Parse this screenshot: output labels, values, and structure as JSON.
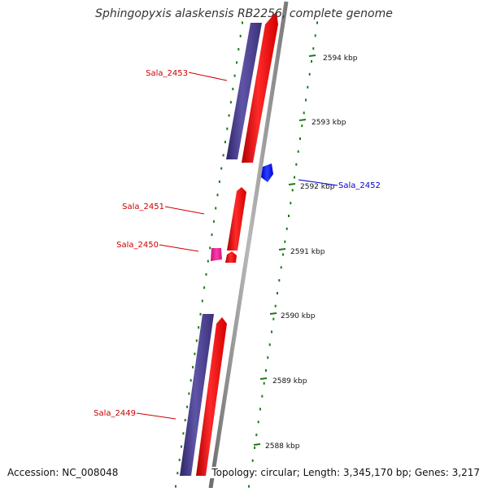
{
  "title": "Sphingopyxis alaskensis RB2256, complete genome",
  "footer": {
    "accession": "Accession: NC_008048",
    "summary": "Topology: circular; Length: 3,345,170 bp; Genes: 3,217"
  },
  "colors": {
    "forward_cds": "#ff0000",
    "reverse_cds": "#0000ff",
    "rna": "#ee1aa0",
    "blast_hit": "#483d8b",
    "ruler": "#1a7a1a",
    "backbone": "#8c8c8c"
  },
  "chart_data": {
    "type": "genome-map",
    "ruler_ticks": [
      {
        "label": "2588 kbp",
        "kbp": 2588
      },
      {
        "label": "2589 kbp",
        "kbp": 2589
      },
      {
        "label": "2590 kbp",
        "kbp": 2590
      },
      {
        "label": "2591 kbp",
        "kbp": 2591
      },
      {
        "label": "2592 kbp",
        "kbp": 2592
      },
      {
        "label": "2593 kbp",
        "kbp": 2593
      },
      {
        "label": "2594 kbp",
        "kbp": 2594
      }
    ],
    "features": [
      {
        "label": "Sala_2453",
        "type": "forward-cds",
        "start_kbp": 2592.9,
        "end_kbp": 2595.5,
        "label_color": "#cc0000"
      },
      {
        "label": "Sala_2452",
        "type": "reverse-cds",
        "start_kbp": 2592.1,
        "end_kbp": 2592.35,
        "label_color": "#0000cc"
      },
      {
        "label": "Sala_2451",
        "type": "forward-cds",
        "start_kbp": 2590.9,
        "end_kbp": 2591.95,
        "label_color": "#cc0000"
      },
      {
        "label": "Sala_2450",
        "type": "forward-cds",
        "start_kbp": 2590.75,
        "end_kbp": 2590.9,
        "label_color": "#cc0000"
      },
      {
        "label": "Sala_2450 (RNA)",
        "type": "rna",
        "start_kbp": 2590.75,
        "end_kbp": 2590.95,
        "label_color": "#cc0000"
      },
      {
        "label": "Sala_2449",
        "type": "forward-cds",
        "start_kbp": 2587.5,
        "end_kbp": 2589.9,
        "label_color": "#cc0000"
      }
    ],
    "blast_hits": [
      {
        "start_kbp": 2592.95,
        "end_kbp": 2595.5
      },
      {
        "start_kbp": 2587.5,
        "end_kbp": 2589.95
      }
    ]
  }
}
